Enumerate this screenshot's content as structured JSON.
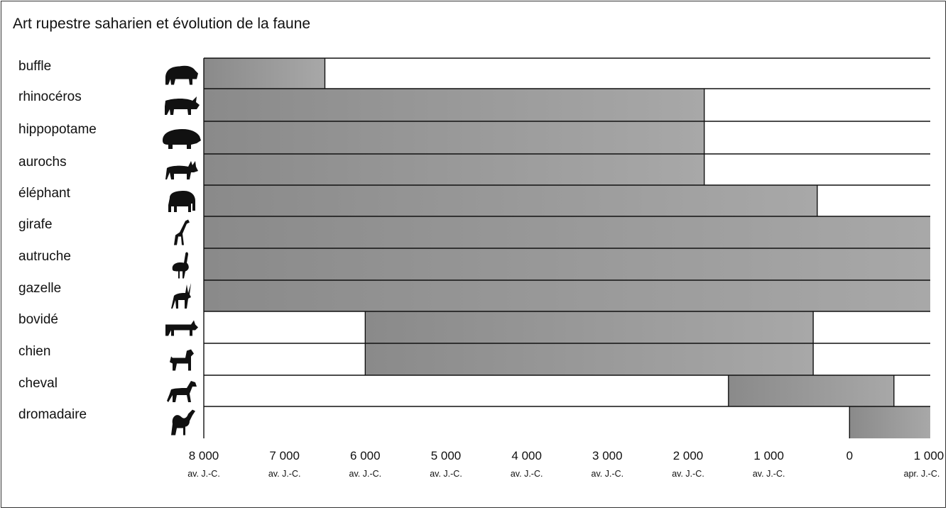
{
  "chart_data": {
    "type": "bar",
    "title": "Art rupestre saharien et évolution de la faune",
    "xlim": [
      -8000,
      1000
    ],
    "ticks": [
      {
        "value": -8000,
        "label": "8 000",
        "era": "av. J.-C."
      },
      {
        "value": -7000,
        "label": "7 000",
        "era": "av. J.-C."
      },
      {
        "value": -6000,
        "label": "6 000",
        "era": "av. J.-C."
      },
      {
        "value": -5000,
        "label": "5 000",
        "era": "av. J.-C."
      },
      {
        "value": -4000,
        "label": "4 000",
        "era": "av. J.-C."
      },
      {
        "value": -3000,
        "label": "3 000",
        "era": "av. J.-C."
      },
      {
        "value": -2000,
        "label": "2 000",
        "era": "av. J.-C."
      },
      {
        "value": -1000,
        "label": "1 000",
        "era": "av. J.-C."
      },
      {
        "value": 0,
        "label": "0",
        "era": ""
      },
      {
        "value": 1000,
        "label": "1 000",
        "era": "apr. J.-C."
      }
    ],
    "categories": [
      {
        "name": "buffle",
        "icon": "buffalo-icon",
        "start": -8000,
        "end": -6500
      },
      {
        "name": "rhinocéros",
        "icon": "rhinoceros-icon",
        "start": -8000,
        "end": -1800
      },
      {
        "name": "hippopotame",
        "icon": "hippopotamus-icon",
        "start": -8000,
        "end": -1800
      },
      {
        "name": "aurochs",
        "icon": "aurochs-icon",
        "start": -8000,
        "end": -1800
      },
      {
        "name": "éléphant",
        "icon": "elephant-icon",
        "start": -8000,
        "end": -400
      },
      {
        "name": "girafe",
        "icon": "giraffe-icon",
        "start": -8000,
        "end": 1000
      },
      {
        "name": "autruche",
        "icon": "ostrich-icon",
        "start": -8000,
        "end": 1000
      },
      {
        "name": "gazelle",
        "icon": "gazelle-icon",
        "start": -8000,
        "end": 1000
      },
      {
        "name": "bovidé",
        "icon": "bovid-icon",
        "start": -6000,
        "end": -450
      },
      {
        "name": "chien",
        "icon": "dog-icon",
        "start": -6000,
        "end": -450
      },
      {
        "name": "cheval",
        "icon": "horse-icon",
        "start": -1500,
        "end": 550
      },
      {
        "name": "dromadaire",
        "icon": "dromedary-icon",
        "start": 0,
        "end": 1000
      }
    ],
    "colors": {
      "bar": "#9e9e9e",
      "bar_dark": "#8c8c8c",
      "line": "#111111"
    }
  }
}
